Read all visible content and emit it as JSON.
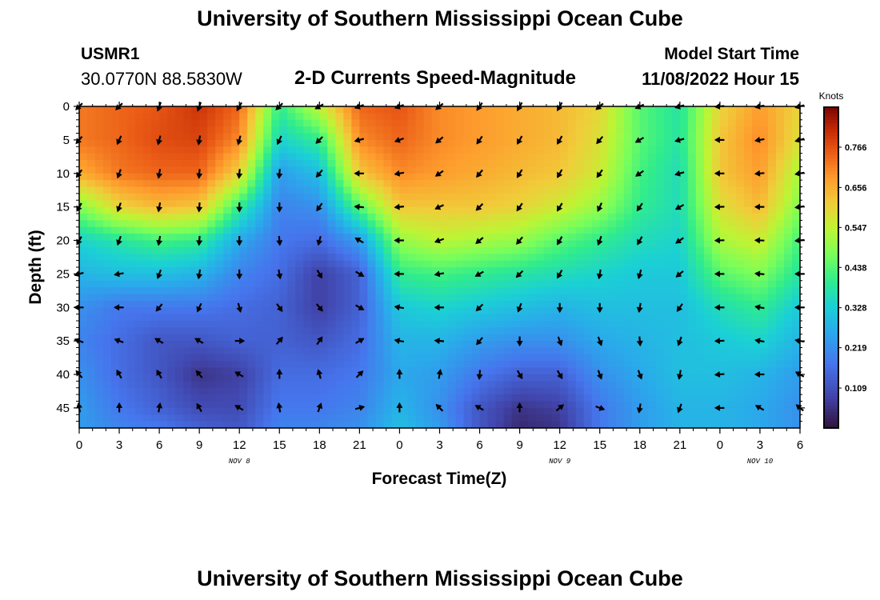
{
  "header": {
    "title": "University of Southern Mississippi Ocean Cube",
    "station": "USMR1",
    "coordinates": "30.0770N  88.5830W",
    "subtitle": "2-D Currents Speed-Magnitude",
    "model_start_label": "Model Start Time",
    "model_start_value": "11/08/2022 Hour 15"
  },
  "footer": {
    "title": "University of Southern Mississippi Ocean Cube"
  },
  "chart_data": {
    "type": "heatmap",
    "title": "2-D Currents Speed-Magnitude",
    "xlabel": "Forecast Time(Z)",
    "ylabel": "Depth (ft)",
    "x_ticks": [
      "0",
      "3",
      "6",
      "9",
      "12",
      "15",
      "18",
      "21",
      "0",
      "3",
      "6",
      "9",
      "12",
      "15",
      "18",
      "21",
      "0",
      "3",
      "6"
    ],
    "x_range": [
      0,
      54
    ],
    "date_labels": [
      {
        "text": "NOV 8",
        "hour": 12
      },
      {
        "text": "NOV 9",
        "hour": 36
      },
      {
        "text": "NOV 10",
        "hour": 51
      }
    ],
    "y_ticks": [
      0,
      5,
      10,
      15,
      20,
      25,
      30,
      35,
      40,
      45
    ],
    "y_range": [
      0,
      48
    ],
    "colorbar": {
      "label": "Knots",
      "range": [
        0,
        0.875
      ],
      "ticks": [
        "0.766",
        "0.656",
        "0.547",
        "0.438",
        "0.328",
        "0.219",
        "0.109"
      ],
      "tick_values": [
        0.766,
        0.656,
        0.547,
        0.438,
        0.328,
        0.219,
        0.109
      ]
    },
    "arrow_depths": [
      0,
      5,
      10,
      15,
      20,
      25,
      30,
      35,
      40,
      45
    ],
    "arrow_hours": [
      0,
      3,
      6,
      9,
      12,
      15,
      18,
      21,
      24,
      27,
      30,
      33,
      36,
      39,
      42,
      45,
      48,
      51,
      54
    ],
    "speed_grid": {
      "hours": [
        0,
        3,
        6,
        9,
        12,
        15,
        18,
        21,
        24,
        27,
        30,
        33,
        36,
        39,
        42,
        45,
        48,
        51,
        54
      ],
      "depths": [
        0,
        5,
        10,
        15,
        20,
        25,
        30,
        35,
        40,
        45,
        48
      ],
      "values": [
        [
          0.72,
          0.74,
          0.76,
          0.8,
          0.74,
          0.4,
          0.55,
          0.74,
          0.76,
          0.7,
          0.68,
          0.66,
          0.64,
          0.6,
          0.44,
          0.38,
          0.6,
          0.68,
          0.6
        ],
        [
          0.72,
          0.74,
          0.77,
          0.78,
          0.7,
          0.34,
          0.4,
          0.7,
          0.74,
          0.7,
          0.68,
          0.66,
          0.64,
          0.58,
          0.44,
          0.38,
          0.62,
          0.7,
          0.58
        ],
        [
          0.66,
          0.72,
          0.74,
          0.74,
          0.6,
          0.24,
          0.3,
          0.62,
          0.7,
          0.68,
          0.66,
          0.64,
          0.62,
          0.56,
          0.42,
          0.36,
          0.62,
          0.68,
          0.52
        ],
        [
          0.48,
          0.6,
          0.64,
          0.62,
          0.4,
          0.2,
          0.22,
          0.44,
          0.62,
          0.62,
          0.62,
          0.6,
          0.56,
          0.5,
          0.4,
          0.36,
          0.58,
          0.64,
          0.48
        ],
        [
          0.34,
          0.38,
          0.42,
          0.4,
          0.26,
          0.18,
          0.16,
          0.24,
          0.5,
          0.54,
          0.52,
          0.5,
          0.44,
          0.4,
          0.36,
          0.34,
          0.52,
          0.56,
          0.42
        ],
        [
          0.28,
          0.3,
          0.3,
          0.28,
          0.2,
          0.16,
          0.08,
          0.14,
          0.4,
          0.42,
          0.4,
          0.38,
          0.36,
          0.34,
          0.32,
          0.32,
          0.44,
          0.48,
          0.38
        ],
        [
          0.22,
          0.18,
          0.18,
          0.18,
          0.16,
          0.14,
          0.08,
          0.14,
          0.32,
          0.34,
          0.32,
          0.3,
          0.28,
          0.3,
          0.3,
          0.3,
          0.36,
          0.4,
          0.32
        ],
        [
          0.2,
          0.16,
          0.12,
          0.12,
          0.14,
          0.14,
          0.12,
          0.16,
          0.28,
          0.28,
          0.24,
          0.22,
          0.22,
          0.26,
          0.28,
          0.3,
          0.32,
          0.34,
          0.28
        ],
        [
          0.22,
          0.16,
          0.12,
          0.06,
          0.08,
          0.16,
          0.16,
          0.18,
          0.26,
          0.24,
          0.18,
          0.14,
          0.14,
          0.22,
          0.26,
          0.3,
          0.3,
          0.28,
          0.24
        ],
        [
          0.24,
          0.18,
          0.14,
          0.1,
          0.1,
          0.18,
          0.18,
          0.2,
          0.28,
          0.22,
          0.12,
          0.06,
          0.08,
          0.18,
          0.24,
          0.28,
          0.28,
          0.26,
          0.22
        ],
        [
          0.24,
          0.2,
          0.18,
          0.14,
          0.12,
          0.2,
          0.2,
          0.22,
          0.3,
          0.24,
          0.12,
          0.04,
          0.06,
          0.18,
          0.24,
          0.28,
          0.28,
          0.26,
          0.22
        ]
      ]
    },
    "arrow_directions_deg": [
      [
        225,
        225,
        200,
        200,
        210,
        225,
        240,
        250,
        250,
        230,
        215,
        210,
        210,
        230,
        245,
        255,
        265,
        260,
        255
      ],
      [
        220,
        205,
        195,
        190,
        195,
        205,
        225,
        255,
        250,
        230,
        215,
        210,
        210,
        220,
        240,
        255,
        270,
        260,
        255
      ],
      [
        215,
        200,
        190,
        185,
        185,
        185,
        220,
        270,
        260,
        235,
        220,
        212,
        210,
        215,
        235,
        255,
        270,
        265,
        260
      ],
      [
        210,
        200,
        190,
        185,
        180,
        180,
        215,
        275,
        265,
        245,
        225,
        215,
        212,
        205,
        215,
        240,
        268,
        270,
        262
      ],
      [
        210,
        200,
        190,
        185,
        180,
        175,
        195,
        300,
        270,
        250,
        230,
        220,
        210,
        200,
        210,
        235,
        268,
        272,
        265
      ],
      [
        255,
        260,
        200,
        190,
        180,
        170,
        150,
        120,
        270,
        260,
        240,
        225,
        210,
        190,
        195,
        230,
        270,
        275,
        270
      ],
      [
        270,
        270,
        220,
        205,
        165,
        145,
        140,
        120,
        280,
        270,
        225,
        200,
        180,
        180,
        190,
        215,
        270,
        280,
        270
      ],
      [
        290,
        290,
        300,
        300,
        90,
        40,
        35,
        60,
        280,
        275,
        220,
        180,
        160,
        160,
        175,
        200,
        268,
        280,
        280
      ],
      [
        320,
        330,
        330,
        320,
        300,
        0,
        345,
        45,
        360,
        10,
        185,
        150,
        150,
        160,
        160,
        190,
        265,
        270,
        300
      ],
      [
        350,
        360,
        10,
        330,
        300,
        350,
        20,
        75,
        360,
        315,
        300,
        360,
        50,
        110,
        190,
        200,
        270,
        300,
        310
      ]
    ]
  }
}
